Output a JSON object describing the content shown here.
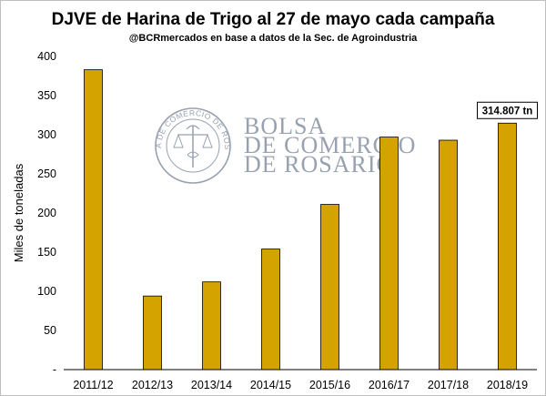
{
  "chart_data": {
    "type": "bar",
    "title": "DJVE de Harina de Trigo al 27 de mayo cada campaña",
    "subtitle": "@BCRmercados en base a datos de la Sec. de Agroindustria",
    "ylabel": "Miles de toneladas",
    "xlabel": "",
    "categories": [
      "2011/12",
      "2012/13",
      "2013/14",
      "2014/15",
      "2015/16",
      "2016/17",
      "2017/18",
      "2018/19"
    ],
    "values": [
      383,
      94,
      112,
      154,
      211,
      297,
      293,
      314.807
    ],
    "ylim": [
      0,
      400
    ],
    "yticks": [
      0,
      50,
      100,
      150,
      200,
      250,
      300,
      350,
      400
    ],
    "ytick_labels": [
      "-",
      "50",
      "100",
      "150",
      "200",
      "250",
      "300",
      "350",
      "400"
    ],
    "grid": false,
    "legend": "none",
    "bar_color": "#d4a300",
    "bar_edge_color": "#000000",
    "annotation": {
      "category": "2018/19",
      "text": "314.807 tn"
    }
  },
  "watermark": {
    "lines": [
      "BOLSA",
      "DE COMERCIO",
      "DE ROSARIO"
    ],
    "seal_text": "BOLSA DE COMERCIO DE ROSARIO"
  }
}
